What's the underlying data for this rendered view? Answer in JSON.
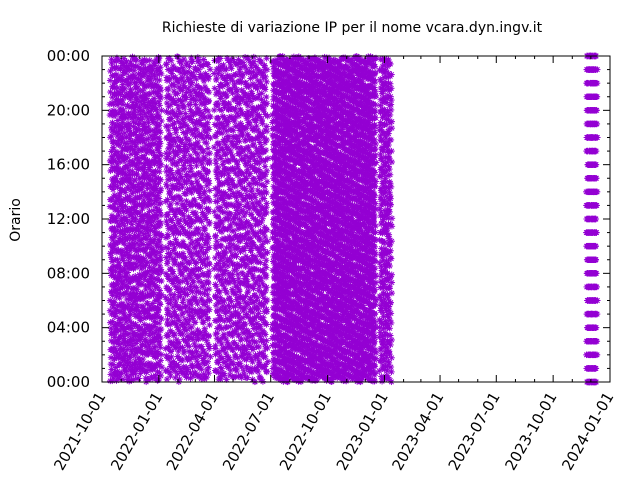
{
  "chart_data": {
    "type": "scatter",
    "title": "Richieste di variazione IP per il nome vcara.dyn.ingv.it",
    "xlabel": "",
    "ylabel": "Orario",
    "x_ticks": [
      "2021-10-01",
      "2022-01-01",
      "2022-04-01",
      "2022-07-01",
      "2022-10-01",
      "2023-01-01",
      "2023-04-01",
      "2023-07-01",
      "2023-10-01",
      "2024-01-01"
    ],
    "y_ticks": [
      "00:00",
      "04:00",
      "08:00",
      "12:00",
      "16:00",
      "20:00",
      "00:00"
    ],
    "xlim": [
      "2021-10-01",
      "2024-01-01"
    ],
    "ylim_hours": [
      0,
      24
    ],
    "marker": "star",
    "series_color": "#9400d3",
    "grid": false,
    "legend": "none",
    "active_periods": [
      {
        "start": "2021-10-15",
        "end": "2022-01-05",
        "hour_step": 0.85,
        "density": "high"
      },
      {
        "start": "2022-01-13",
        "end": "2022-03-25",
        "hour_step": 0.9,
        "density": "medium"
      },
      {
        "start": "2022-04-02",
        "end": "2022-06-25",
        "hour_step": 0.9,
        "density": "medium"
      },
      {
        "start": "2022-07-05",
        "end": "2022-12-18",
        "hour_step": 0.55,
        "density": "very-high"
      },
      {
        "start": "2022-12-25",
        "end": "2023-01-12",
        "hour_step": 0.8,
        "density": "high"
      },
      {
        "start": "2023-11-25",
        "end": "2023-12-10",
        "hour_step": 1.0,
        "density": "regular"
      }
    ]
  }
}
